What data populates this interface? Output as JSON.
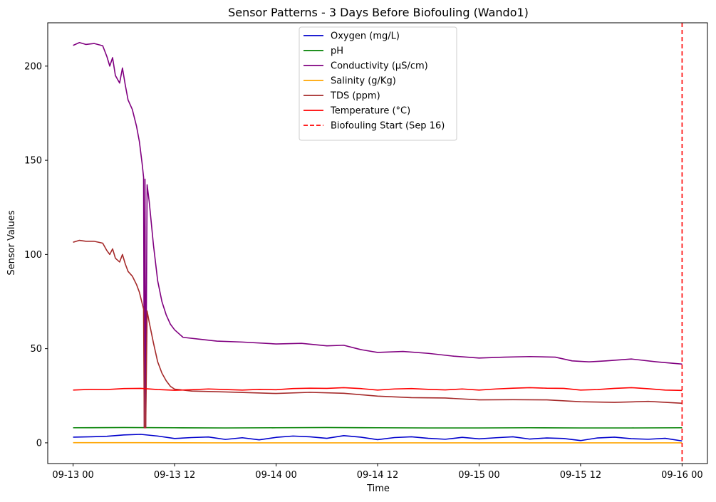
{
  "chart_data": {
    "type": "line",
    "title": "Sensor Patterns - 3 Days Before Biofouling (Wando1)",
    "xlabel": "Time",
    "ylabel": "Sensor Values",
    "xlim": [
      "2024-09-12T21:00",
      "2024-09-16T03:00"
    ],
    "ylim": [
      -11,
      223
    ],
    "x_ticks": [
      {
        "t": "2024-09-13T00:00",
        "label": "09-13 00"
      },
      {
        "t": "2024-09-13T12:00",
        "label": "09-13 12"
      },
      {
        "t": "2024-09-14T00:00",
        "label": "09-14 00"
      },
      {
        "t": "2024-09-14T12:00",
        "label": "09-14 12"
      },
      {
        "t": "2024-09-15T00:00",
        "label": "09-15 00"
      },
      {
        "t": "2024-09-15T12:00",
        "label": "09-15 12"
      },
      {
        "t": "2024-09-16T00:00",
        "label": "09-16 00"
      }
    ],
    "y_ticks": [
      0,
      50,
      100,
      150,
      200
    ],
    "grid": false,
    "legend_position": "top-center",
    "series": [
      {
        "name": "Oxygen (mg/L)",
        "color": "#0000cc",
        "points": [
          [
            "2024-09-13T00:00",
            3.0
          ],
          [
            "2024-09-13T02:00",
            3.2
          ],
          [
            "2024-09-13T04:00",
            3.5
          ],
          [
            "2024-09-13T06:00",
            4.2
          ],
          [
            "2024-09-13T08:00",
            4.5
          ],
          [
            "2024-09-13T10:00",
            3.6
          ],
          [
            "2024-09-13T12:00",
            2.3
          ],
          [
            "2024-09-13T14:00",
            2.8
          ],
          [
            "2024-09-13T16:00",
            3.1
          ],
          [
            "2024-09-13T18:00",
            1.8
          ],
          [
            "2024-09-13T20:00",
            2.7
          ],
          [
            "2024-09-13T22:00",
            1.6
          ],
          [
            "2024-09-14T00:00",
            2.9
          ],
          [
            "2024-09-14T02:00",
            3.6
          ],
          [
            "2024-09-14T04:00",
            3.2
          ],
          [
            "2024-09-14T06:00",
            2.4
          ],
          [
            "2024-09-14T08:00",
            3.8
          ],
          [
            "2024-09-14T10:00",
            3.0
          ],
          [
            "2024-09-14T12:00",
            1.7
          ],
          [
            "2024-09-14T14:00",
            2.8
          ],
          [
            "2024-09-14T16:00",
            3.2
          ],
          [
            "2024-09-14T18:00",
            2.4
          ],
          [
            "2024-09-14T20:00",
            1.9
          ],
          [
            "2024-09-14T22:00",
            2.9
          ],
          [
            "2024-09-15T00:00",
            2.1
          ],
          [
            "2024-09-15T02:00",
            2.7
          ],
          [
            "2024-09-15T04:00",
            3.2
          ],
          [
            "2024-09-15T06:00",
            2.0
          ],
          [
            "2024-09-15T08:00",
            2.6
          ],
          [
            "2024-09-15T10:00",
            2.3
          ],
          [
            "2024-09-15T12:00",
            1.2
          ],
          [
            "2024-09-15T14:00",
            2.6
          ],
          [
            "2024-09-15T16:00",
            3.0
          ],
          [
            "2024-09-15T18:00",
            2.2
          ],
          [
            "2024-09-15T20:00",
            1.9
          ],
          [
            "2024-09-15T22:00",
            2.4
          ],
          [
            "2024-09-16T00:00",
            1.0
          ]
        ]
      },
      {
        "name": "pH",
        "color": "#008000",
        "points": [
          [
            "2024-09-13T00:00",
            8.0
          ],
          [
            "2024-09-13T06:00",
            8.1
          ],
          [
            "2024-09-13T12:00",
            8.0
          ],
          [
            "2024-09-13T18:00",
            7.9
          ],
          [
            "2024-09-14T00:00",
            8.0
          ],
          [
            "2024-09-14T06:00",
            8.1
          ],
          [
            "2024-09-14T12:00",
            8.0
          ],
          [
            "2024-09-14T18:00",
            7.9
          ],
          [
            "2024-09-15T00:00",
            7.9
          ],
          [
            "2024-09-15T06:00",
            8.0
          ],
          [
            "2024-09-15T12:00",
            7.9
          ],
          [
            "2024-09-15T18:00",
            7.9
          ],
          [
            "2024-09-16T00:00",
            8.0
          ]
        ]
      },
      {
        "name": "Conductivity (µS/cm)",
        "color": "#800080",
        "points": [
          [
            "2024-09-13T00:00",
            211.0
          ],
          [
            "2024-09-13T00:45",
            212.5
          ],
          [
            "2024-09-13T01:30",
            211.5
          ],
          [
            "2024-09-13T02:30",
            212.0
          ],
          [
            "2024-09-13T03:30",
            210.8
          ],
          [
            "2024-09-13T04:00",
            205.0
          ],
          [
            "2024-09-13T04:20",
            200.0
          ],
          [
            "2024-09-13T04:40",
            204.5
          ],
          [
            "2024-09-13T05:00",
            195.0
          ],
          [
            "2024-09-13T05:30",
            191.0
          ],
          [
            "2024-09-13T05:50",
            199.0
          ],
          [
            "2024-09-13T06:10",
            190.0
          ],
          [
            "2024-09-13T06:30",
            182.0
          ],
          [
            "2024-09-13T07:00",
            177.0
          ],
          [
            "2024-09-13T07:30",
            168.0
          ],
          [
            "2024-09-13T07:50",
            160.0
          ],
          [
            "2024-09-13T08:10",
            148.0
          ],
          [
            "2024-09-13T08:20",
            141.0
          ],
          [
            "2024-09-13T08:25",
            8.0
          ],
          [
            "2024-09-13T08:30",
            140.0
          ],
          [
            "2024-09-13T08:35",
            8.0
          ],
          [
            "2024-09-13T08:45",
            137.0
          ],
          [
            "2024-09-13T09:00",
            128.0
          ],
          [
            "2024-09-13T09:30",
            105.0
          ],
          [
            "2024-09-13T10:00",
            86.0
          ],
          [
            "2024-09-13T10:30",
            75.0
          ],
          [
            "2024-09-13T11:00",
            68.0
          ],
          [
            "2024-09-13T11:30",
            63.0
          ],
          [
            "2024-09-13T12:00",
            60.0
          ],
          [
            "2024-09-13T13:00",
            56.0
          ],
          [
            "2024-09-13T15:00",
            55.0
          ],
          [
            "2024-09-13T17:00",
            54.0
          ],
          [
            "2024-09-13T20:00",
            53.5
          ],
          [
            "2024-09-14T00:00",
            52.5
          ],
          [
            "2024-09-14T03:00",
            52.8
          ],
          [
            "2024-09-14T06:00",
            51.5
          ],
          [
            "2024-09-14T08:00",
            51.8
          ],
          [
            "2024-09-14T10:00",
            49.5
          ],
          [
            "2024-09-14T12:00",
            48.0
          ],
          [
            "2024-09-14T15:00",
            48.5
          ],
          [
            "2024-09-14T18:00",
            47.5
          ],
          [
            "2024-09-14T21:00",
            46.0
          ],
          [
            "2024-09-15T00:00",
            45.0
          ],
          [
            "2024-09-15T03:00",
            45.5
          ],
          [
            "2024-09-15T06:00",
            45.8
          ],
          [
            "2024-09-15T09:00",
            45.5
          ],
          [
            "2024-09-15T11:00",
            43.5
          ],
          [
            "2024-09-15T13:00",
            43.0
          ],
          [
            "2024-09-15T15:00",
            43.5
          ],
          [
            "2024-09-15T18:00",
            44.5
          ],
          [
            "2024-09-15T21:00",
            43.0
          ],
          [
            "2024-09-16T00:00",
            41.8
          ]
        ]
      },
      {
        "name": "Salinity (g/Kg)",
        "color": "#ffa500",
        "points": [
          [
            "2024-09-13T00:00",
            0.1
          ],
          [
            "2024-09-13T08:00",
            0.1
          ],
          [
            "2024-09-13T16:00",
            0.0
          ],
          [
            "2024-09-14T00:00",
            0.0
          ],
          [
            "2024-09-14T12:00",
            0.0
          ],
          [
            "2024-09-15T00:00",
            0.0
          ],
          [
            "2024-09-15T12:00",
            0.0
          ],
          [
            "2024-09-16T00:00",
            0.0
          ]
        ]
      },
      {
        "name": "TDS (ppm)",
        "color": "#a52a2a",
        "points": [
          [
            "2024-09-13T00:00",
            106.5
          ],
          [
            "2024-09-13T00:45",
            107.5
          ],
          [
            "2024-09-13T01:30",
            107.0
          ],
          [
            "2024-09-13T02:30",
            107.0
          ],
          [
            "2024-09-13T03:30",
            106.0
          ],
          [
            "2024-09-13T04:00",
            102.0
          ],
          [
            "2024-09-13T04:20",
            100.0
          ],
          [
            "2024-09-13T04:40",
            103.0
          ],
          [
            "2024-09-13T05:00",
            98.0
          ],
          [
            "2024-09-13T05:30",
            96.0
          ],
          [
            "2024-09-13T05:50",
            100.0
          ],
          [
            "2024-09-13T06:10",
            95.0
          ],
          [
            "2024-09-13T06:30",
            91.0
          ],
          [
            "2024-09-13T07:00",
            88.5
          ],
          [
            "2024-09-13T07:30",
            84.0
          ],
          [
            "2024-09-13T07:50",
            80.0
          ],
          [
            "2024-09-13T08:10",
            74.0
          ],
          [
            "2024-09-13T08:20",
            71.0
          ],
          [
            "2024-09-13T08:25",
            8.0
          ],
          [
            "2024-09-13T08:35",
            8.0
          ],
          [
            "2024-09-13T08:45",
            70.0
          ],
          [
            "2024-09-13T09:00",
            64.0
          ],
          [
            "2024-09-13T09:30",
            53.0
          ],
          [
            "2024-09-13T10:00",
            43.0
          ],
          [
            "2024-09-13T10:30",
            37.0
          ],
          [
            "2024-09-13T11:00",
            33.0
          ],
          [
            "2024-09-13T11:30",
            30.0
          ],
          [
            "2024-09-13T12:00",
            28.5
          ],
          [
            "2024-09-13T14:00",
            27.5
          ],
          [
            "2024-09-13T18:00",
            27.0
          ],
          [
            "2024-09-14T00:00",
            26.2
          ],
          [
            "2024-09-14T04:00",
            26.8
          ],
          [
            "2024-09-14T08:00",
            26.3
          ],
          [
            "2024-09-14T12:00",
            24.8
          ],
          [
            "2024-09-14T16:00",
            24.0
          ],
          [
            "2024-09-14T20:00",
            23.8
          ],
          [
            "2024-09-15T00:00",
            22.8
          ],
          [
            "2024-09-15T04:00",
            22.9
          ],
          [
            "2024-09-15T08:00",
            22.8
          ],
          [
            "2024-09-15T12:00",
            21.8
          ],
          [
            "2024-09-15T16:00",
            21.5
          ],
          [
            "2024-09-15T20:00",
            22.0
          ],
          [
            "2024-09-16T00:00",
            21.0
          ]
        ]
      },
      {
        "name": "Temperature (°C)",
        "color": "#ff0000",
        "points": [
          [
            "2024-09-13T00:00",
            28.0
          ],
          [
            "2024-09-13T02:00",
            28.4
          ],
          [
            "2024-09-13T04:00",
            28.3
          ],
          [
            "2024-09-13T06:00",
            28.8
          ],
          [
            "2024-09-13T08:00",
            28.9
          ],
          [
            "2024-09-13T10:00",
            28.3
          ],
          [
            "2024-09-13T12:00",
            27.9
          ],
          [
            "2024-09-13T14:00",
            28.2
          ],
          [
            "2024-09-13T16:00",
            28.6
          ],
          [
            "2024-09-13T18:00",
            28.3
          ],
          [
            "2024-09-13T20:00",
            28.0
          ],
          [
            "2024-09-13T22:00",
            28.4
          ],
          [
            "2024-09-14T00:00",
            28.2
          ],
          [
            "2024-09-14T02:00",
            28.8
          ],
          [
            "2024-09-14T04:00",
            29.0
          ],
          [
            "2024-09-14T06:00",
            28.9
          ],
          [
            "2024-09-14T08:00",
            29.3
          ],
          [
            "2024-09-14T10:00",
            28.8
          ],
          [
            "2024-09-14T12:00",
            28.0
          ],
          [
            "2024-09-14T14:00",
            28.6
          ],
          [
            "2024-09-14T16:00",
            28.8
          ],
          [
            "2024-09-14T18:00",
            28.4
          ],
          [
            "2024-09-14T20:00",
            28.1
          ],
          [
            "2024-09-14T22:00",
            28.6
          ],
          [
            "2024-09-15T00:00",
            28.0
          ],
          [
            "2024-09-15T02:00",
            28.6
          ],
          [
            "2024-09-15T04:00",
            29.0
          ],
          [
            "2024-09-15T06:00",
            29.3
          ],
          [
            "2024-09-15T08:00",
            29.0
          ],
          [
            "2024-09-15T10:00",
            28.9
          ],
          [
            "2024-09-15T12:00",
            28.0
          ],
          [
            "2024-09-15T14:00",
            28.3
          ],
          [
            "2024-09-15T16:00",
            28.9
          ],
          [
            "2024-09-15T18:00",
            29.3
          ],
          [
            "2024-09-15T20:00",
            28.7
          ],
          [
            "2024-09-15T22:00",
            28.0
          ],
          [
            "2024-09-16T00:00",
            27.8
          ]
        ]
      }
    ],
    "vline": {
      "name": "Biofouling Start (Sep 16)",
      "color": "#ff0000",
      "x": "2024-09-16T00:00",
      "style": "dashed"
    }
  }
}
